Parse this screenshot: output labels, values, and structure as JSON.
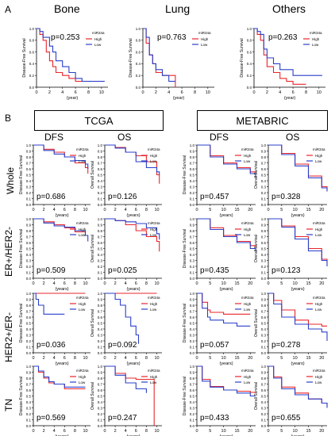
{
  "colors": {
    "high": "#e8262b",
    "low": "#2a3fc9",
    "axis": "#000000"
  },
  "panel_a": {
    "letter": "A",
    "legend_title": "miR34a",
    "legend_high": "High",
    "legend_low": "Low",
    "xlabel": "(year)",
    "ylabel": "Disease-Free Survival",
    "plots": [
      {
        "title": "Bone",
        "p": "p=0.253",
        "xticks": [
          0,
          2,
          4,
          6,
          8,
          10
        ],
        "yticks": [
          "0.0",
          "0.2",
          "0.4",
          "0.6",
          "0.8",
          "1.0"
        ]
      },
      {
        "title": "Lung",
        "p": "p=0.763",
        "xticks": [
          0,
          2,
          4,
          6,
          8,
          10
        ],
        "yticks": [
          "0.0",
          "0.2",
          "0.4",
          "0.6",
          "0.8",
          "1.0"
        ]
      },
      {
        "title": "Others",
        "p": "p=0.263",
        "xticks": [
          0,
          2,
          4,
          6,
          8,
          10
        ],
        "yticks": [
          "0.0",
          "0.2",
          "0.4",
          "0.6",
          "0.8",
          "1.0"
        ]
      }
    ]
  },
  "panel_b": {
    "letter": "B",
    "datasets": [
      "TCGA",
      "METABRIC"
    ],
    "columns": [
      "DFS",
      "OS",
      "DFS",
      "OS"
    ],
    "rows": [
      "Whole",
      "ER+/HER2-",
      "HER2+/ER-",
      "TN"
    ],
    "legend_title": "miR34a",
    "legend_high": "High",
    "legend_low": "Low",
    "xlabel": "(years)",
    "ylabel_dfs": "Disease-Free Survival",
    "ylabel_os": "Overall Survival",
    "tcga_xticks": [
      0,
      2,
      4,
      6,
      8,
      10
    ],
    "metabric_xticks": [
      0,
      5,
      10,
      15,
      20
    ],
    "yticks": [
      "0.0",
      "0.1",
      "0.2",
      "0.3",
      "0.4",
      "0.5",
      "0.6",
      "0.7",
      "0.8",
      "0.9",
      "1.0"
    ],
    "pvalues": [
      [
        "p=0.686",
        "p=0.126",
        "p=0.457",
        "p=0.328"
      ],
      [
        "p=0.509",
        "p=0.025",
        "p=0.435",
        "p=0.123"
      ],
      [
        "p=0.036",
        "p=0.092",
        "p=0.057",
        "p=0.278"
      ],
      [
        "p=0.569",
        "p=0.247",
        "p=0.433",
        "p=0.655"
      ]
    ]
  },
  "chart_data": [
    {
      "type": "line",
      "panel": "A",
      "title": "Bone",
      "xlabel": "(year)",
      "ylabel": "Disease-Free Survival",
      "ylim": [
        0,
        1
      ],
      "xlim": [
        0,
        11
      ],
      "series": [
        {
          "name": "High",
          "x": [
            0,
            0.5,
            1,
            1.5,
            2,
            2.5,
            3,
            4,
            5,
            6,
            7
          ],
          "y": [
            1,
            0.9,
            0.8,
            0.6,
            0.45,
            0.35,
            0.25,
            0.2,
            0.15,
            0.1,
            0.1
          ]
        },
        {
          "name": "Low",
          "x": [
            0,
            0.5,
            1,
            2,
            2.5,
            3,
            4,
            5,
            6,
            7,
            10.5
          ],
          "y": [
            1,
            0.95,
            0.85,
            0.7,
            0.6,
            0.45,
            0.35,
            0.25,
            0.15,
            0.1,
            0.1
          ]
        }
      ]
    },
    {
      "type": "line",
      "panel": "A",
      "title": "Lung",
      "xlabel": "(year)",
      "ylabel": "Disease-Free Survival",
      "ylim": [
        0,
        1
      ],
      "xlim": [
        0,
        11
      ],
      "series": [
        {
          "name": "High",
          "x": [
            0,
            0.5,
            1,
            1.5,
            2,
            3,
            4,
            5
          ],
          "y": [
            1,
            0.75,
            0.55,
            0.4,
            0.25,
            0.2,
            0.2,
            0
          ]
        },
        {
          "name": "Low",
          "x": [
            0,
            0.5,
            1,
            1.5,
            2,
            3,
            4,
            5
          ],
          "y": [
            1,
            0.85,
            0.55,
            0.4,
            0.3,
            0.2,
            0.1,
            0.1
          ]
        }
      ]
    },
    {
      "type": "line",
      "panel": "A",
      "title": "Others",
      "xlabel": "(year)",
      "ylabel": "Disease-Free Survival",
      "ylim": [
        0,
        1
      ],
      "xlim": [
        0,
        11
      ],
      "series": [
        {
          "name": "High",
          "x": [
            0,
            0.5,
            1,
            1.5,
            2,
            3,
            4,
            5,
            6,
            8
          ],
          "y": [
            1,
            0.9,
            0.8,
            0.55,
            0.35,
            0.25,
            0.15,
            0.1,
            0.05,
            0.05
          ]
        },
        {
          "name": "Low",
          "x": [
            0,
            0.5,
            1,
            1.5,
            2,
            3,
            4,
            6,
            8,
            10.5
          ],
          "y": [
            1,
            0.95,
            0.9,
            0.65,
            0.5,
            0.4,
            0.3,
            0.2,
            0.2,
            0.2
          ]
        }
      ]
    },
    {
      "type": "line",
      "panel": "B",
      "title": "Whole TCGA DFS",
      "xlabel": "(years)",
      "ylim": [
        0,
        1
      ],
      "xlim": [
        0,
        11
      ],
      "series": [
        {
          "name": "High",
          "x": [
            0,
            2,
            4,
            6,
            8,
            10,
            10.5
          ],
          "y": [
            1,
            0.93,
            0.88,
            0.8,
            0.7,
            0.62,
            0.52
          ]
        },
        {
          "name": "Low",
          "x": [
            0,
            2,
            4,
            6,
            8,
            10,
            10.5
          ],
          "y": [
            1,
            0.91,
            0.85,
            0.8,
            0.74,
            0.68,
            0.6
          ]
        }
      ]
    },
    {
      "type": "line",
      "panel": "B",
      "title": "Whole TCGA OS",
      "xlabel": "(years)",
      "ylim": [
        0,
        1
      ],
      "xlim": [
        0,
        11
      ],
      "series": [
        {
          "name": "High",
          "x": [
            0,
            2,
            4,
            6,
            8,
            10,
            10.5
          ],
          "y": [
            1,
            0.96,
            0.88,
            0.82,
            0.72,
            0.5,
            0.35
          ]
        },
        {
          "name": "Low",
          "x": [
            0,
            2,
            4,
            6,
            8,
            10,
            10.5
          ],
          "y": [
            1,
            0.95,
            0.88,
            0.72,
            0.62,
            0.55,
            0.5
          ]
        }
      ]
    },
    {
      "type": "line",
      "panel": "B",
      "title": "Whole METABRIC DFS",
      "xlabel": "(years)",
      "ylim": [
        0,
        1
      ],
      "xlim": [
        0,
        22
      ],
      "series": [
        {
          "name": "High",
          "x": [
            0,
            5,
            10,
            15,
            20,
            22
          ],
          "y": [
            1,
            0.82,
            0.7,
            0.62,
            0.55,
            0.5
          ]
        },
        {
          "name": "Low",
          "x": [
            0,
            5,
            10,
            15,
            20,
            22
          ],
          "y": [
            1,
            0.8,
            0.68,
            0.6,
            0.52,
            0.45
          ]
        }
      ]
    },
    {
      "type": "line",
      "panel": "B",
      "title": "Whole METABRIC OS",
      "xlabel": "(years)",
      "ylim": [
        0,
        1
      ],
      "xlim": [
        0,
        22
      ],
      "series": [
        {
          "name": "High",
          "x": [
            0,
            5,
            10,
            15,
            20,
            22
          ],
          "y": [
            1,
            0.86,
            0.68,
            0.48,
            0.3,
            0.25
          ]
        },
        {
          "name": "Low",
          "x": [
            0,
            5,
            10,
            15,
            20,
            22
          ],
          "y": [
            1,
            0.84,
            0.65,
            0.45,
            0.28,
            0.22
          ]
        }
      ]
    },
    {
      "type": "line",
      "panel": "B",
      "title": "ER+/HER2- TCGA DFS",
      "xlabel": "(years)",
      "ylim": [
        0,
        1
      ],
      "xlim": [
        0,
        11
      ],
      "series": [
        {
          "name": "High",
          "x": [
            0,
            2,
            4,
            6,
            8,
            10,
            10.5
          ],
          "y": [
            1,
            0.95,
            0.9,
            0.85,
            0.78,
            0.72,
            0.72
          ]
        },
        {
          "name": "Low",
          "x": [
            0,
            2,
            4,
            6,
            8,
            10,
            10.5
          ],
          "y": [
            1,
            0.93,
            0.88,
            0.86,
            0.8,
            0.72,
            0.62
          ]
        }
      ]
    },
    {
      "type": "line",
      "panel": "B",
      "title": "ER+/HER2- TCGA OS",
      "xlabel": "(years)",
      "ylim": [
        0,
        1
      ],
      "xlim": [
        0,
        11
      ],
      "series": [
        {
          "name": "High",
          "x": [
            0,
            2,
            4,
            6,
            8,
            10,
            10.5
          ],
          "y": [
            1,
            0.97,
            0.9,
            0.8,
            0.7,
            0.62,
            0.45
          ]
        },
        {
          "name": "Low",
          "x": [
            0,
            2,
            4,
            6,
            8,
            10,
            10.5
          ],
          "y": [
            1,
            0.97,
            0.95,
            0.92,
            0.85,
            0.75,
            0.65
          ]
        }
      ]
    },
    {
      "type": "line",
      "panel": "B",
      "title": "ER+/HER2- METABRIC DFS",
      "xlabel": "(years)",
      "ylim": [
        0,
        1
      ],
      "xlim": [
        0,
        22
      ],
      "series": [
        {
          "name": "High",
          "x": [
            0,
            5,
            10,
            15,
            20,
            22
          ],
          "y": [
            1,
            0.85,
            0.72,
            0.62,
            0.55,
            0.5
          ]
        },
        {
          "name": "Low",
          "x": [
            0,
            5,
            10,
            15,
            20,
            22
          ],
          "y": [
            1,
            0.82,
            0.7,
            0.6,
            0.5,
            0.45
          ]
        }
      ]
    },
    {
      "type": "line",
      "panel": "B",
      "title": "ER+/HER2- METABRIC OS",
      "xlabel": "(years)",
      "ylim": [
        0,
        1
      ],
      "xlim": [
        0,
        22
      ],
      "series": [
        {
          "name": "High",
          "x": [
            0,
            5,
            10,
            15,
            20,
            22
          ],
          "y": [
            1,
            0.88,
            0.7,
            0.5,
            0.32,
            0.25
          ]
        },
        {
          "name": "Low",
          "x": [
            0,
            5,
            10,
            15,
            20,
            22
          ],
          "y": [
            1,
            0.86,
            0.66,
            0.46,
            0.3,
            0.2
          ]
        }
      ]
    },
    {
      "type": "line",
      "panel": "B",
      "title": "HER2+/ER- TCGA DFS",
      "xlabel": "(years)",
      "ylim": [
        0,
        1
      ],
      "xlim": [
        0,
        11
      ],
      "series": [
        {
          "name": "High",
          "x": [
            0,
            2,
            4,
            6,
            8,
            10
          ],
          "y": [
            1,
            1,
            1,
            1,
            1,
            1
          ]
        },
        {
          "name": "Low",
          "x": [
            0,
            0.5,
            1,
            2,
            3,
            4,
            6
          ],
          "y": [
            1,
            0.9,
            0.8,
            0.65,
            0.65,
            0.65,
            0.65
          ]
        }
      ]
    },
    {
      "type": "line",
      "panel": "B",
      "title": "HER2+/ER- TCGA OS",
      "xlabel": "(years)",
      "ylim": [
        0,
        1
      ],
      "xlim": [
        0,
        11
      ],
      "series": [
        {
          "name": "High",
          "x": [
            0,
            2,
            4,
            6,
            8,
            10
          ],
          "y": [
            1,
            1,
            1,
            1,
            1,
            1
          ]
        },
        {
          "name": "Low",
          "x": [
            0,
            1,
            2,
            3,
            4,
            5,
            6,
            6.5
          ],
          "y": [
            1,
            1,
            0.9,
            0.8,
            0.6,
            0.45,
            0.3,
            0.15
          ]
        }
      ]
    },
    {
      "type": "line",
      "panel": "B",
      "title": "HER2+/ER- METABRIC DFS",
      "xlabel": "(years)",
      "ylim": [
        0,
        1
      ],
      "xlim": [
        0,
        22
      ],
      "series": [
        {
          "name": "High",
          "x": [
            0,
            2,
            4,
            5,
            10,
            15,
            20
          ],
          "y": [
            1,
            0.85,
            0.72,
            0.68,
            0.65,
            0.65,
            0.65
          ]
        },
        {
          "name": "Low",
          "x": [
            0,
            2,
            4,
            5,
            10,
            15,
            20
          ],
          "y": [
            1,
            0.75,
            0.6,
            0.55,
            0.5,
            0.45,
            0.45
          ]
        }
      ]
    },
    {
      "type": "line",
      "panel": "B",
      "title": "HER2+/ER- METABRIC OS",
      "xlabel": "(years)",
      "ylim": [
        0,
        1
      ],
      "xlim": [
        0,
        22
      ],
      "series": [
        {
          "name": "High",
          "x": [
            0,
            2,
            5,
            10,
            15,
            20,
            22
          ],
          "y": [
            1,
            0.88,
            0.72,
            0.55,
            0.48,
            0.45,
            0.45
          ]
        },
        {
          "name": "Low",
          "x": [
            0,
            2,
            5,
            10,
            15,
            20,
            22
          ],
          "y": [
            1,
            0.82,
            0.6,
            0.48,
            0.4,
            0.35,
            0.2
          ]
        }
      ]
    },
    {
      "type": "line",
      "panel": "B",
      "title": "TN TCGA DFS",
      "xlabel": "(years)",
      "ylim": [
        0,
        1
      ],
      "xlim": [
        0,
        11
      ],
      "series": [
        {
          "name": "High",
          "x": [
            0,
            1,
            2,
            3,
            4,
            6,
            8,
            10
          ],
          "y": [
            1,
            0.9,
            0.8,
            0.72,
            0.7,
            0.62,
            0.62,
            0.62
          ]
        },
        {
          "name": "Low",
          "x": [
            0,
            1,
            2,
            3,
            4,
            6,
            8,
            10
          ],
          "y": [
            1,
            0.92,
            0.82,
            0.74,
            0.7,
            0.65,
            0.65,
            0.65
          ]
        }
      ]
    },
    {
      "type": "line",
      "panel": "B",
      "title": "TN TCGA OS",
      "xlabel": "(years)",
      "ylim": [
        0,
        1
      ],
      "xlim": [
        0,
        11
      ],
      "series": [
        {
          "name": "High",
          "x": [
            0,
            2,
            4,
            6,
            8,
            9.5
          ],
          "y": [
            1,
            0.88,
            0.8,
            0.78,
            0.78,
            0.0
          ]
        },
        {
          "name": "Low",
          "x": [
            0,
            2,
            4,
            6,
            8
          ],
          "y": [
            1,
            0.85,
            0.72,
            0.62,
            0.55
          ]
        }
      ]
    },
    {
      "type": "line",
      "panel": "B",
      "title": "TN METABRIC DFS",
      "xlabel": "(years)",
      "ylim": [
        0,
        1
      ],
      "xlim": [
        0,
        22
      ],
      "series": [
        {
          "name": "High",
          "x": [
            0,
            2,
            5,
            10,
            15,
            20,
            22
          ],
          "y": [
            1,
            0.78,
            0.66,
            0.6,
            0.58,
            0.56,
            0.56
          ]
        },
        {
          "name": "Low",
          "x": [
            0,
            2,
            5,
            10,
            15,
            20,
            22
          ],
          "y": [
            1,
            0.75,
            0.65,
            0.6,
            0.55,
            0.5,
            0.5
          ]
        }
      ]
    },
    {
      "type": "line",
      "panel": "B",
      "title": "TN METABRIC OS",
      "xlabel": "(years)",
      "ylim": [
        0,
        1
      ],
      "xlim": [
        0,
        22
      ],
      "series": [
        {
          "name": "High",
          "x": [
            0,
            2,
            5,
            10,
            15,
            20,
            22
          ],
          "y": [
            1,
            0.82,
            0.65,
            0.55,
            0.45,
            0.38,
            0.32
          ]
        },
        {
          "name": "Low",
          "x": [
            0,
            2,
            5,
            10,
            15,
            20,
            22
          ],
          "y": [
            1,
            0.8,
            0.62,
            0.52,
            0.45,
            0.38,
            0.3
          ]
        }
      ]
    }
  ]
}
